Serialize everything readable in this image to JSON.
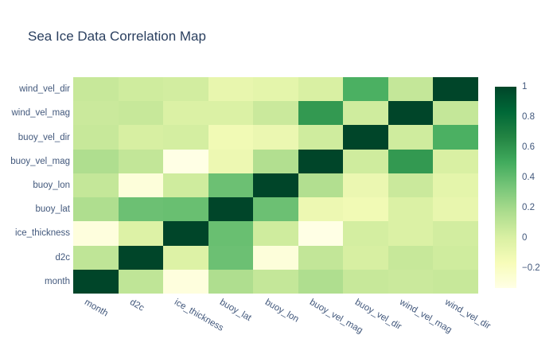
{
  "title": "Sea Ice Data Correlation Map",
  "colors": {
    "background": "#ffffff",
    "title_text": "#2a3f5f",
    "tick_text": "#42587c",
    "scale_min_color": "#ffffe5",
    "scale_max_color": "#004529"
  },
  "chart_data": {
    "type": "heatmap",
    "title": "Sea Ice Data Correlation Map",
    "xlabel": "",
    "ylabel": "",
    "x_categories": [
      "month",
      "d2c",
      "ice_thickness",
      "buoy_lat",
      "buoy_lon",
      "buoy_vel_mag",
      "buoy_vel_dir",
      "wind_vel_mag",
      "wind_vel_dir"
    ],
    "y_categories_top_to_bottom": [
      "wind_vel_dir",
      "wind_vel_mag",
      "buoy_vel_dir",
      "buoy_vel_mag",
      "buoy_lon",
      "buoy_lat",
      "ice_thickness",
      "d2c",
      "month"
    ],
    "z_rows_top_to_bottom": [
      [
        0.07,
        0.04,
        0.03,
        -0.08,
        -0.06,
        0.0,
        0.47,
        0.08,
        1.0
      ],
      [
        0.06,
        0.07,
        -0.01,
        -0.01,
        0.06,
        0.58,
        0.04,
        1.0,
        0.08
      ],
      [
        0.07,
        0.01,
        0.02,
        -0.13,
        -0.1,
        0.04,
        1.0,
        0.04,
        0.47
      ],
      [
        0.16,
        0.09,
        -0.33,
        -0.11,
        0.15,
        1.0,
        0.04,
        0.58,
        0.0
      ],
      [
        0.08,
        -0.29,
        0.04,
        0.37,
        1.0,
        0.15,
        -0.1,
        0.06,
        -0.06
      ],
      [
        0.16,
        0.37,
        0.38,
        1.0,
        0.37,
        -0.11,
        -0.13,
        -0.01,
        -0.08
      ],
      [
        -0.3,
        -0.02,
        1.0,
        0.38,
        0.04,
        -0.33,
        0.02,
        -0.01,
        0.03
      ],
      [
        0.1,
        1.0,
        -0.02,
        0.37,
        -0.29,
        0.09,
        0.01,
        0.07,
        0.04
      ],
      [
        1.0,
        0.1,
        -0.3,
        0.16,
        0.08,
        0.16,
        0.07,
        0.06,
        0.07
      ]
    ],
    "zmin": -0.33,
    "zmax": 1,
    "colorscale_name": "YlGn",
    "colorscale": [
      [
        0,
        "#ffffe5"
      ],
      [
        0.125,
        "#f7fcb9"
      ],
      [
        0.25,
        "#d9f0a3"
      ],
      [
        0.375,
        "#addd8e"
      ],
      [
        0.5,
        "#78c679"
      ],
      [
        0.625,
        "#41ab5d"
      ],
      [
        0.75,
        "#238443"
      ],
      [
        0.875,
        "#006837"
      ],
      [
        1,
        "#004529"
      ]
    ],
    "colorbar_ticks": [
      1,
      0.8,
      0.6,
      0.4,
      0.2,
      0,
      -0.2
    ],
    "legend_position": "right",
    "grid": false,
    "x_tick_angle_deg": 30
  }
}
